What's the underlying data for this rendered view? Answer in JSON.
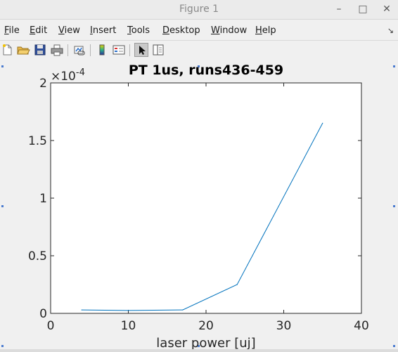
{
  "window": {
    "title": "Figure 1",
    "controls": {
      "minimize": "–",
      "maximize": "□",
      "close": "✕"
    }
  },
  "menu": {
    "items": [
      {
        "label": "File",
        "key": "F",
        "rest": "ile"
      },
      {
        "label": "Edit",
        "key": "E",
        "rest": "dit"
      },
      {
        "label": "View",
        "key": "V",
        "rest": "iew"
      },
      {
        "label": "Insert",
        "key": "I",
        "rest": "nsert"
      },
      {
        "label": "Tools",
        "key": "T",
        "rest": "ools"
      },
      {
        "label": "Desktop",
        "key": "D",
        "rest": "esktop"
      },
      {
        "label": "Window",
        "key": "W",
        "rest": "indow"
      },
      {
        "label": "Help",
        "key": "H",
        "rest": "elp"
      }
    ],
    "overflow": "↘"
  },
  "toolbar": {
    "icons": [
      "new-figure-icon",
      "open-file-icon",
      "save-icon",
      "print-icon",
      "link-plot-icon",
      "insert-colorbar-icon",
      "insert-legend-icon",
      "edit-plot-icon",
      "property-inspector-icon"
    ]
  },
  "colors": {
    "line": "#0072bd"
  },
  "chart_data": {
    "type": "line",
    "title": "PT 1us, runs436-459",
    "xlabel": "laser power [uj]",
    "ylabel": "",
    "exponent_label": "×10",
    "exponent_power": "-4",
    "xlim": [
      0,
      40
    ],
    "ylim": [
      0,
      2
    ],
    "xticks": [
      "0",
      "10",
      "20",
      "30",
      "40"
    ],
    "yticks": [
      "0",
      "0.5",
      "1",
      "1.5",
      "2"
    ],
    "series": [
      {
        "x": [
          4,
          10,
          17,
          24,
          35
        ],
        "y": [
          0.03,
          0.025,
          0.03,
          0.25,
          1.65
        ]
      }
    ],
    "grid": false
  }
}
